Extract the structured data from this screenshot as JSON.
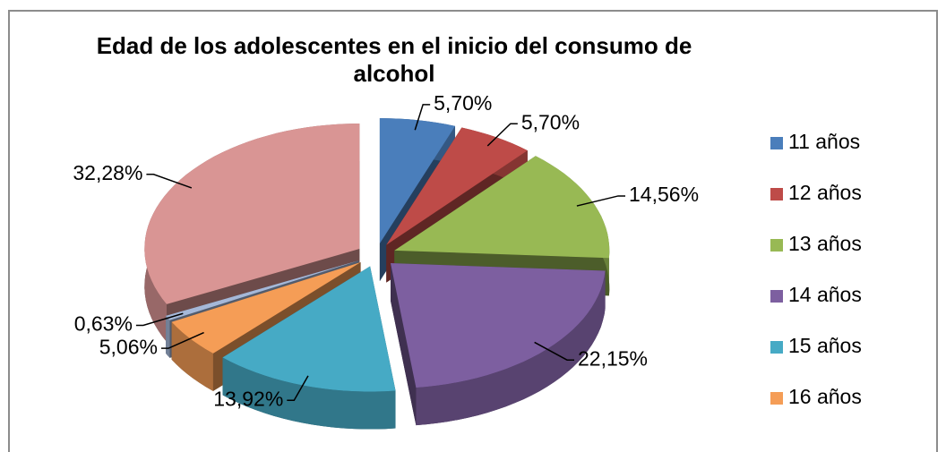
{
  "chart_data": {
    "type": "pie3d",
    "title": "Edad de los adolescentes en el inicio del consumo de alcohol",
    "categories": [
      "11 años",
      "12 años",
      "13 años",
      "14 años",
      "15 años",
      "16 años",
      null,
      null
    ],
    "values": [
      5.7,
      5.7,
      14.56,
      22.15,
      13.92,
      5.06,
      0.63,
      32.28
    ],
    "value_labels": [
      "5,70%",
      "5,70%",
      "14,56%",
      "22,15%",
      "13,92%",
      "5,06%",
      "0,63%",
      "32,28%"
    ],
    "colors": [
      "#4a7ebb",
      "#be4b48",
      "#98b954",
      "#7d5fa0",
      "#46aac5",
      "#f59d56",
      "#a5b8d9",
      "#d99594"
    ],
    "legend": "right"
  }
}
